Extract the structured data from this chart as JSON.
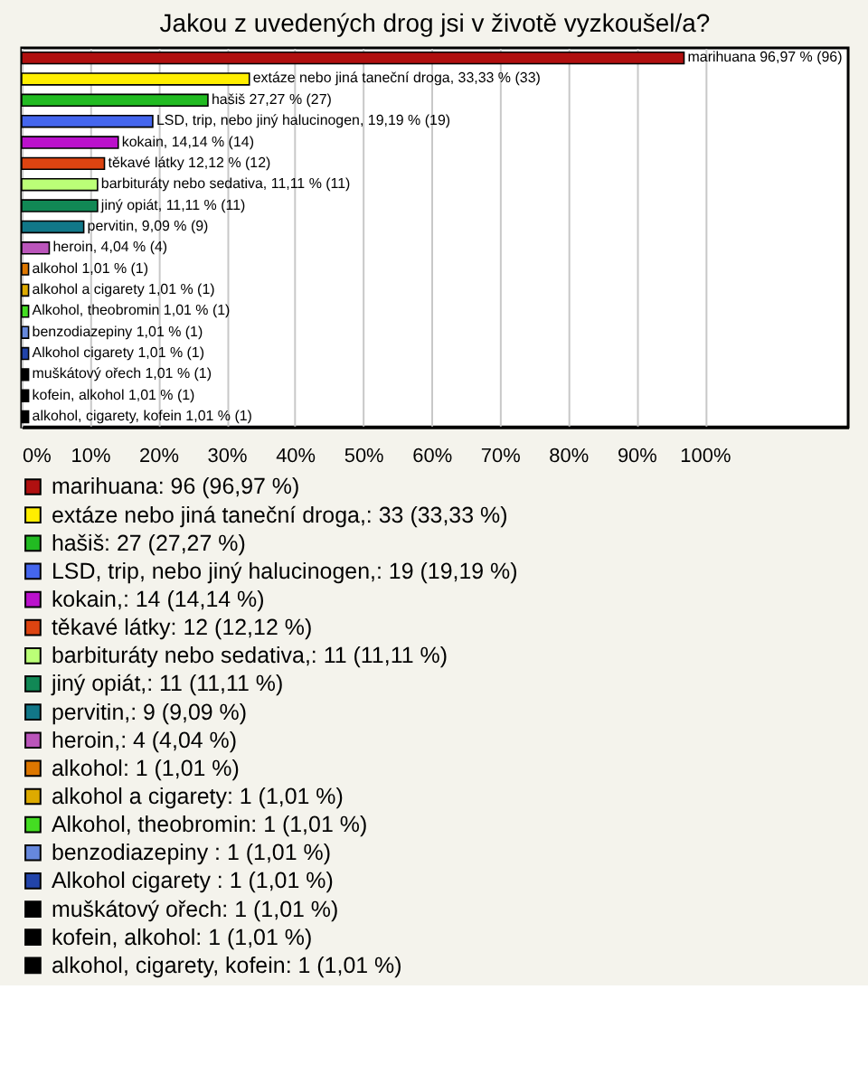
{
  "chart_data": {
    "type": "bar",
    "orientation": "horizontal",
    "title": "Jakou z uvedených drog jsi v životě vyzkoušel/a?",
    "categories": [
      null,
      null,
      null,
      null,
      null,
      null,
      null,
      null,
      null,
      null,
      null,
      null,
      null,
      null,
      null,
      null,
      null,
      null
    ],
    "series": [
      {
        "name": "marihuana: 96 (96,97 %)",
        "color": "#b01010",
        "values": [
          96.97,
          null,
          null,
          null,
          null,
          null,
          null,
          null,
          null,
          null,
          null,
          null,
          null,
          null,
          null,
          null,
          null,
          null
        ],
        "value_labels": [
          "marihuana 96,97 % (96)",
          null,
          null,
          null,
          null,
          null,
          null,
          null,
          null,
          null,
          null,
          null,
          null,
          null,
          null,
          null,
          null,
          null
        ]
      },
      {
        "name": "extáze nebo jiná taneční droga,: 33 (33,33 %)",
        "color": "#ffee00",
        "values": [
          null,
          33.33,
          null,
          null,
          null,
          null,
          null,
          null,
          null,
          null,
          null,
          null,
          null,
          null,
          null,
          null,
          null,
          null
        ],
        "value_labels": [
          null,
          "extáze nebo jiná taneční droga, 33,33 % (33)",
          null,
          null,
          null,
          null,
          null,
          null,
          null,
          null,
          null,
          null,
          null,
          null,
          null,
          null,
          null,
          null
        ]
      },
      {
        "name": "hašiš: 27 (27,27 %)",
        "color": "#22bb22",
        "values": [
          null,
          null,
          27.27,
          null,
          null,
          null,
          null,
          null,
          null,
          null,
          null,
          null,
          null,
          null,
          null,
          null,
          null,
          null
        ],
        "value_labels": [
          null,
          null,
          "hašiš 27,27 % (27)",
          null,
          null,
          null,
          null,
          null,
          null,
          null,
          null,
          null,
          null,
          null,
          null,
          null,
          null,
          null
        ]
      },
      {
        "name": "LSD, trip, nebo jiný halucinogen,: 19 (19,19 %)",
        "color": "#4466ee",
        "values": [
          null,
          null,
          null,
          19.19,
          null,
          null,
          null,
          null,
          null,
          null,
          null,
          null,
          null,
          null,
          null,
          null,
          null,
          null
        ],
        "value_labels": [
          null,
          null,
          null,
          "LSD, trip, nebo jiný halucinogen, 19,19 % (19)",
          null,
          null,
          null,
          null,
          null,
          null,
          null,
          null,
          null,
          null,
          null,
          null,
          null,
          null
        ]
      },
      {
        "name": "kokain,: 14 (14,14 %)",
        "color": "#bb11cc",
        "values": [
          null,
          null,
          null,
          null,
          14.14,
          null,
          null,
          null,
          null,
          null,
          null,
          null,
          null,
          null,
          null,
          null,
          null,
          null
        ],
        "value_labels": [
          null,
          null,
          null,
          null,
          "kokain, 14,14 % (14)",
          null,
          null,
          null,
          null,
          null,
          null,
          null,
          null,
          null,
          null,
          null,
          null,
          null
        ]
      },
      {
        "name": "těkavé látky: 12 (12,12 %)",
        "color": "#dd4411",
        "values": [
          null,
          null,
          null,
          null,
          null,
          12.12,
          null,
          null,
          null,
          null,
          null,
          null,
          null,
          null,
          null,
          null,
          null,
          null
        ],
        "value_labels": [
          null,
          null,
          null,
          null,
          null,
          "těkavé látky 12,12 % (12)",
          null,
          null,
          null,
          null,
          null,
          null,
          null,
          null,
          null,
          null,
          null,
          null
        ]
      },
      {
        "name": "barbituráty nebo sedativa,: 11 (11,11 %)",
        "color": "#bbff77",
        "values": [
          null,
          null,
          null,
          null,
          null,
          null,
          11.11,
          null,
          null,
          null,
          null,
          null,
          null,
          null,
          null,
          null,
          null,
          null
        ],
        "value_labels": [
          null,
          null,
          null,
          null,
          null,
          null,
          "barbituráty nebo sedativa, 11,11 % (11)",
          null,
          null,
          null,
          null,
          null,
          null,
          null,
          null,
          null,
          null,
          null
        ]
      },
      {
        "name": "jiný opiát,: 11 (11,11 %)",
        "color": "#118855",
        "values": [
          null,
          null,
          null,
          null,
          null,
          null,
          null,
          11.11,
          null,
          null,
          null,
          null,
          null,
          null,
          null,
          null,
          null,
          null
        ],
        "value_labels": [
          null,
          null,
          null,
          null,
          null,
          null,
          null,
          "jiný opiát, 11,11 % (11)",
          null,
          null,
          null,
          null,
          null,
          null,
          null,
          null,
          null,
          null
        ]
      },
      {
        "name": "pervitin,: 9 (9,09 %)",
        "color": "#117788",
        "values": [
          null,
          null,
          null,
          null,
          null,
          null,
          null,
          null,
          9.09,
          null,
          null,
          null,
          null,
          null,
          null,
          null,
          null,
          null
        ],
        "value_labels": [
          null,
          null,
          null,
          null,
          null,
          null,
          null,
          null,
          "pervitin, 9,09 % (9)",
          null,
          null,
          null,
          null,
          null,
          null,
          null,
          null,
          null
        ]
      },
      {
        "name": "heroin,: 4 (4,04 %)",
        "color": "#bb55bb",
        "values": [
          null,
          null,
          null,
          null,
          null,
          null,
          null,
          null,
          null,
          4.04,
          null,
          null,
          null,
          null,
          null,
          null,
          null,
          null
        ],
        "value_labels": [
          null,
          null,
          null,
          null,
          null,
          null,
          null,
          null,
          null,
          "heroin, 4,04 % (4)",
          null,
          null,
          null,
          null,
          null,
          null,
          null,
          null
        ]
      },
      {
        "name": "alkohol: 1 (1,01 %)",
        "color": "#dd7700",
        "values": [
          null,
          null,
          null,
          null,
          null,
          null,
          null,
          null,
          null,
          null,
          1.01,
          null,
          null,
          null,
          null,
          null,
          null,
          null
        ],
        "value_labels": [
          null,
          null,
          null,
          null,
          null,
          null,
          null,
          null,
          null,
          null,
          "alkohol 1,01 % (1)",
          null,
          null,
          null,
          null,
          null,
          null,
          null
        ]
      },
      {
        "name": "alkohol a cigarety: 1 (1,01 %)",
        "color": "#ddaa00",
        "values": [
          null,
          null,
          null,
          null,
          null,
          null,
          null,
          null,
          null,
          null,
          null,
          1.01,
          null,
          null,
          null,
          null,
          null,
          null
        ],
        "value_labels": [
          null,
          null,
          null,
          null,
          null,
          null,
          null,
          null,
          null,
          null,
          null,
          "alkohol a cigarety 1,01 % (1)",
          null,
          null,
          null,
          null,
          null,
          null
        ]
      },
      {
        "name": "Alkohol, theobromin: 1 (1,01 %)",
        "color": "#44dd22",
        "values": [
          null,
          null,
          null,
          null,
          null,
          null,
          null,
          null,
          null,
          null,
          null,
          null,
          1.01,
          null,
          null,
          null,
          null,
          null
        ],
        "value_labels": [
          null,
          null,
          null,
          null,
          null,
          null,
          null,
          null,
          null,
          null,
          null,
          null,
          "Alkohol, theobromin 1,01 % (1)",
          null,
          null,
          null,
          null,
          null
        ]
      },
      {
        "name": "benzodiazepiny : 1 (1,01 %)",
        "color": "#6688dd",
        "values": [
          null,
          null,
          null,
          null,
          null,
          null,
          null,
          null,
          null,
          null,
          null,
          null,
          null,
          1.01,
          null,
          null,
          null,
          null
        ],
        "value_labels": [
          null,
          null,
          null,
          null,
          null,
          null,
          null,
          null,
          null,
          null,
          null,
          null,
          null,
          "benzodiazepiny  1,01 % (1)",
          null,
          null,
          null,
          null
        ]
      },
      {
        "name": "Alkohol cigarety : 1 (1,01 %)",
        "color": "#2244aa",
        "values": [
          null,
          null,
          null,
          null,
          null,
          null,
          null,
          null,
          null,
          null,
          null,
          null,
          null,
          null,
          1.01,
          null,
          null,
          null
        ],
        "value_labels": [
          null,
          null,
          null,
          null,
          null,
          null,
          null,
          null,
          null,
          null,
          null,
          null,
          null,
          null,
          "Alkohol cigarety  1,01 % (1)",
          null,
          null,
          null
        ]
      },
      {
        "name": "muškátový ořech: 1 (1,01 %)",
        "color": "#000000",
        "values": [
          null,
          null,
          null,
          null,
          null,
          null,
          null,
          null,
          null,
          null,
          null,
          null,
          null,
          null,
          null,
          1.01,
          null,
          null
        ],
        "value_labels": [
          null,
          null,
          null,
          null,
          null,
          null,
          null,
          null,
          null,
          null,
          null,
          null,
          null,
          null,
          null,
          "muškátový ořech 1,01 % (1)",
          null,
          null
        ]
      },
      {
        "name": "kofein, alkohol: 1 (1,01 %)",
        "color": "#000000",
        "values": [
          null,
          null,
          null,
          null,
          null,
          null,
          null,
          null,
          null,
          null,
          null,
          null,
          null,
          null,
          null,
          null,
          1.01,
          null
        ],
        "value_labels": [
          null,
          null,
          null,
          null,
          null,
          null,
          null,
          null,
          null,
          null,
          null,
          null,
          null,
          null,
          null,
          null,
          "kofein, alkohol 1,01 % (1)",
          null
        ]
      },
      {
        "name": "alkohol, cigarety, kofein: 1 (1,01 %)",
        "color": "#000000",
        "values": [
          null,
          null,
          null,
          null,
          null,
          null,
          null,
          null,
          null,
          null,
          null,
          null,
          null,
          null,
          null,
          null,
          null,
          1.01
        ],
        "value_labels": [
          null,
          null,
          null,
          null,
          null,
          null,
          null,
          null,
          null,
          null,
          null,
          null,
          null,
          null,
          null,
          null,
          null,
          "alkohol, cigarety, kofein 1,01 % (1)"
        ]
      }
    ],
    "xlim": [
      0,
      121
    ],
    "xticks": [
      {
        "value": 0,
        "label": "0%"
      },
      {
        "value": 10,
        "label": "10%"
      },
      {
        "value": 20,
        "label": "20%"
      },
      {
        "value": 30,
        "label": "30%"
      },
      {
        "value": 40,
        "label": "40%"
      },
      {
        "value": 50,
        "label": "50%"
      },
      {
        "value": 60,
        "label": "60%"
      },
      {
        "value": 70,
        "label": "70%"
      },
      {
        "value": 80,
        "label": "80%"
      },
      {
        "value": 90,
        "label": "90%"
      },
      {
        "value": 100,
        "label": "100%"
      }
    ],
    "grid": "x",
    "legend": "bottom",
    "tick_labels": "x"
  }
}
